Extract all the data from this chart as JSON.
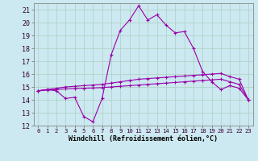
{
  "background_color": "#cce8f0",
  "grid_color": "#b0d4c8",
  "line_color": "#9900aa",
  "marker_color": "#9900aa",
  "xlabel": "Windchill (Refroidissement éolien,°C)",
  "xlabel_fontsize": 6.0,
  "tick_fontsize": 6.0,
  "xlim": [
    -0.5,
    23.5
  ],
  "ylim": [
    12,
    21.5
  ],
  "yticks": [
    12,
    13,
    14,
    15,
    16,
    17,
    18,
    19,
    20,
    21
  ],
  "xticks": [
    0,
    1,
    2,
    3,
    4,
    5,
    6,
    7,
    8,
    9,
    10,
    11,
    12,
    13,
    14,
    15,
    16,
    17,
    18,
    19,
    20,
    21,
    22,
    23
  ],
  "series1_x": [
    0,
    1,
    2,
    3,
    4,
    5,
    6,
    7,
    8,
    9,
    10,
    11,
    12,
    13,
    14,
    15,
    16,
    17,
    18,
    19,
    20,
    21,
    22,
    23
  ],
  "series1_y": [
    14.7,
    14.8,
    14.7,
    14.1,
    14.2,
    12.7,
    12.3,
    14.1,
    17.5,
    19.4,
    20.2,
    21.3,
    20.2,
    20.6,
    19.8,
    19.2,
    19.3,
    18.0,
    16.2,
    15.4,
    14.8,
    15.1,
    14.9,
    14.0
  ],
  "series2_x": [
    0,
    1,
    2,
    3,
    4,
    5,
    6,
    7,
    8,
    9,
    10,
    11,
    12,
    13,
    14,
    15,
    16,
    17,
    18,
    19,
    20,
    21,
    22,
    23
  ],
  "series2_y": [
    14.7,
    14.8,
    14.9,
    15.0,
    15.05,
    15.1,
    15.15,
    15.2,
    15.3,
    15.4,
    15.5,
    15.6,
    15.65,
    15.7,
    15.75,
    15.8,
    15.85,
    15.9,
    15.95,
    16.0,
    16.05,
    15.8,
    15.6,
    14.0
  ],
  "series3_x": [
    0,
    1,
    2,
    3,
    4,
    5,
    6,
    7,
    8,
    9,
    10,
    11,
    12,
    13,
    14,
    15,
    16,
    17,
    18,
    19,
    20,
    21,
    22,
    23
  ],
  "series3_y": [
    14.7,
    14.75,
    14.8,
    14.85,
    14.88,
    14.9,
    14.92,
    14.95,
    15.0,
    15.05,
    15.1,
    15.15,
    15.2,
    15.25,
    15.3,
    15.35,
    15.4,
    15.45,
    15.5,
    15.55,
    15.6,
    15.4,
    15.2,
    14.0
  ]
}
